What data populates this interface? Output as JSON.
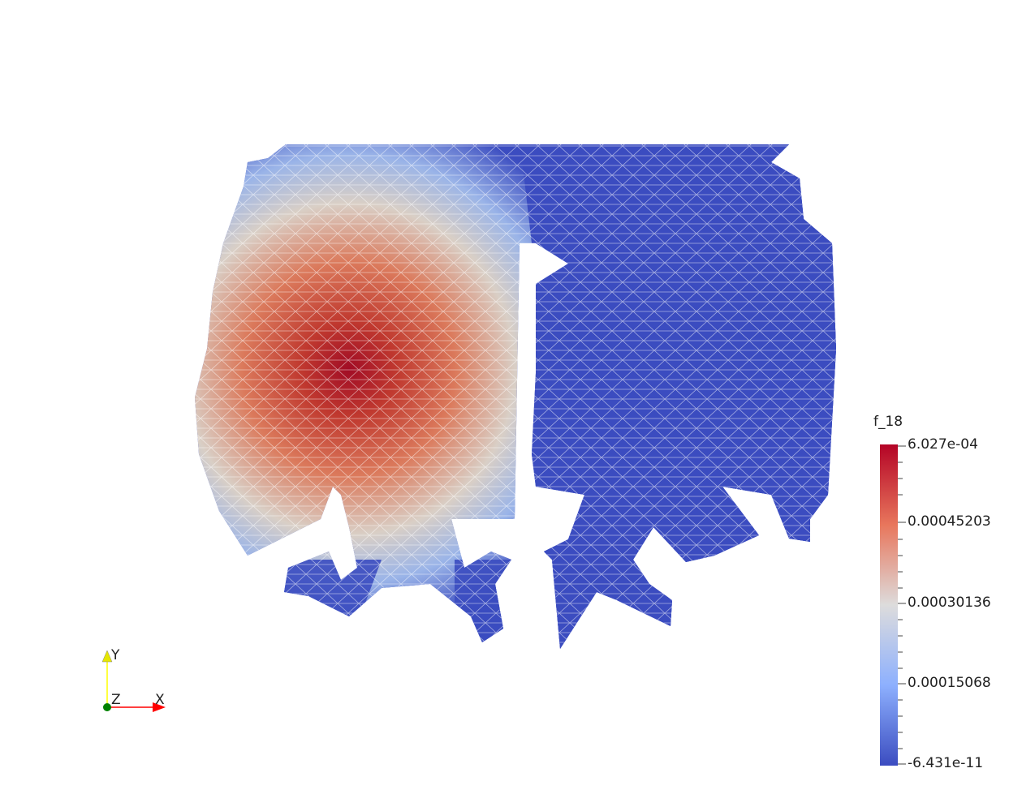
{
  "scalar_bar": {
    "title": "f_18",
    "labels": [
      "6.027e-04",
      "0.00045203",
      "0.00030136",
      "0.00015068",
      "-6.431e-11"
    ],
    "colormap": [
      "#b40426",
      "#dd7b5e",
      "#dddcdc",
      "#8db0fe",
      "#3b4cc0"
    ]
  },
  "orientation_axes": {
    "x": "X",
    "y": "Y",
    "z": "Z",
    "x_color": "#ff0000",
    "y_color": "#ffff00",
    "z_color": "#008000"
  },
  "mesh": {
    "field_peak_color": "#b40426",
    "field_low_color": "#3b4cc0",
    "wire_color": "#ffffff"
  }
}
